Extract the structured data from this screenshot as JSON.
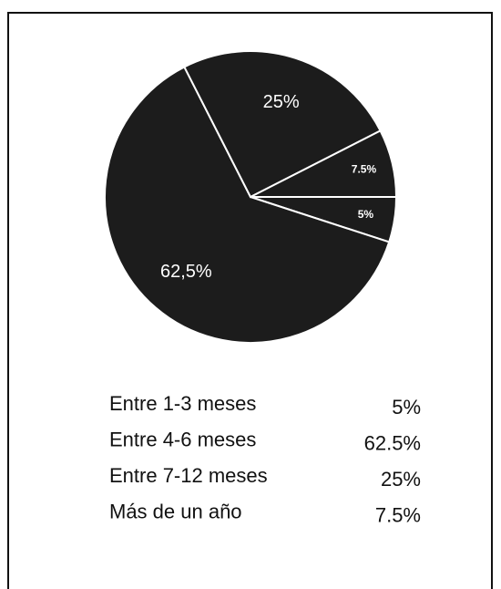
{
  "chart_data": {
    "type": "pie",
    "categories": [
      "Entre 1-3 meses",
      "Entre 4-6 meses",
      "Entre 7-12 meses",
      "Más de un año"
    ],
    "values": [
      5,
      62.5,
      25,
      7.5
    ],
    "value_labels": [
      "5%",
      "62,5%",
      "25%",
      "7.5%"
    ],
    "legend_value_labels": [
      "5%",
      "62.5%",
      "25%",
      "7.5%"
    ],
    "color": "#1c1c1c"
  }
}
